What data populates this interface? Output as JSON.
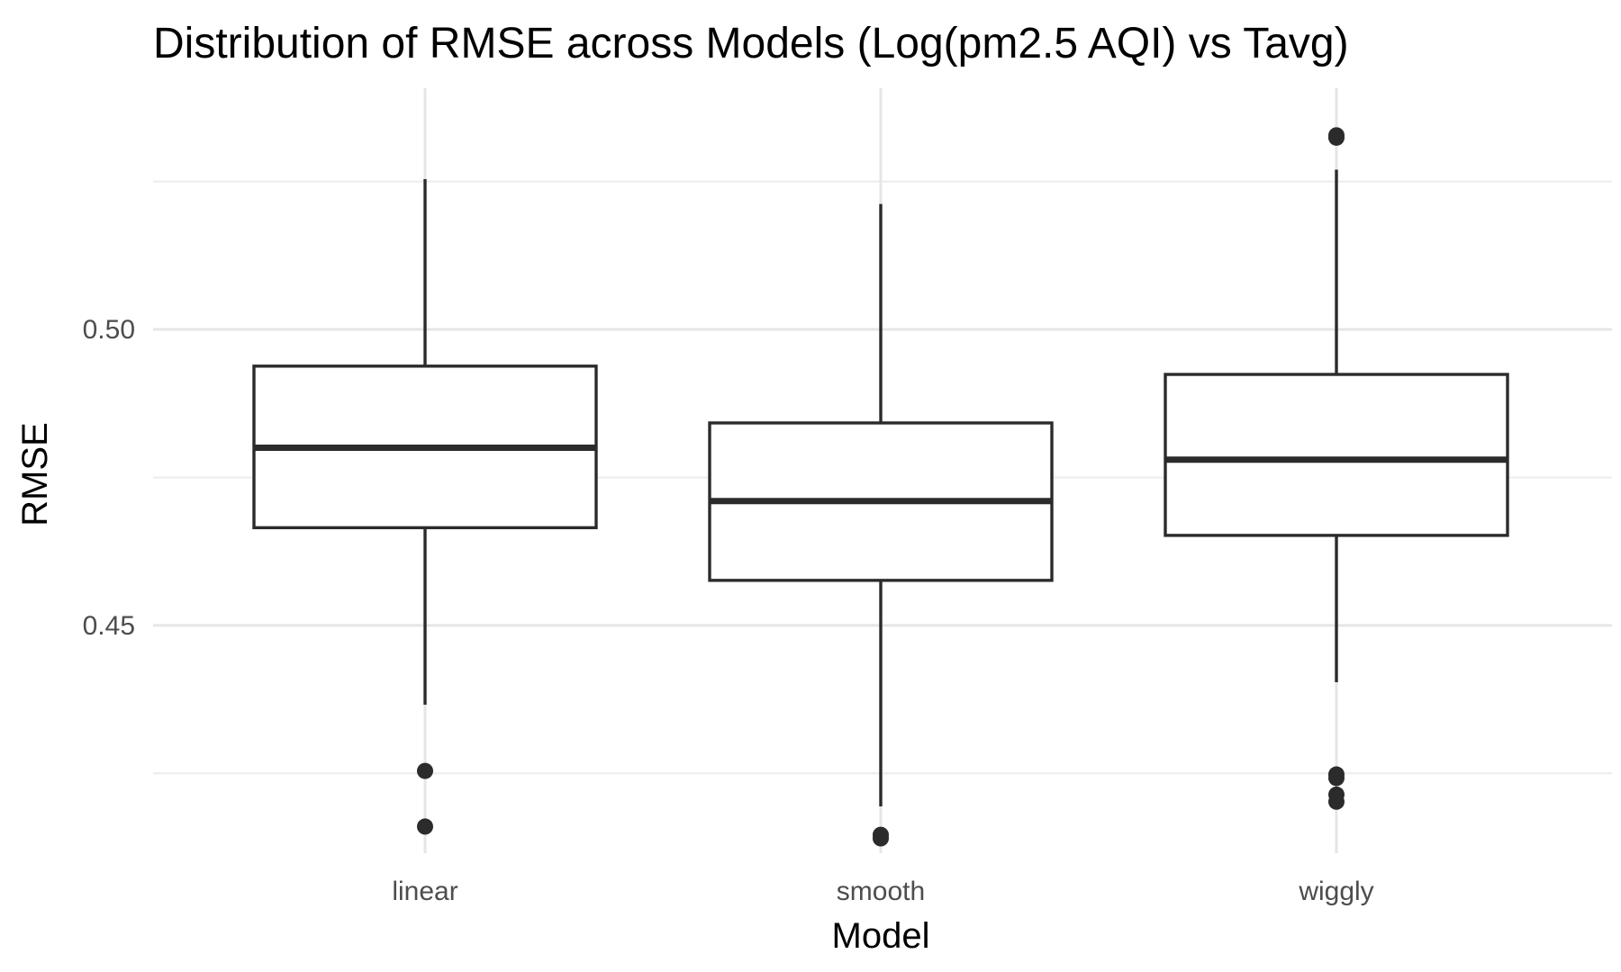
{
  "chart_data": {
    "type": "box",
    "title": "Distribution of RMSE across Models (Log(pm2.5 AQI) vs Tavg)",
    "xlabel": "Model",
    "ylabel": "RMSE",
    "categories": [
      "linear",
      "smooth",
      "wiggly"
    ],
    "y_ticks": [
      0.45,
      0.5
    ],
    "y_tick_labels": [
      "0.45",
      "0.50"
    ],
    "ylim": [
      0.4115,
      0.5435
    ],
    "grid": true,
    "legend": "none",
    "boxes": [
      {
        "category": "linear",
        "q1": 0.4665,
        "median": 0.48,
        "q3": 0.4938,
        "whisker_low": 0.4366,
        "whisker_high": 0.5254,
        "outliers": [
          0.4254,
          0.416
        ]
      },
      {
        "category": "smooth",
        "q1": 0.4576,
        "median": 0.471,
        "q3": 0.4842,
        "whisker_low": 0.4194,
        "whisker_high": 0.5212,
        "outliers": [
          0.4146,
          0.414
        ]
      },
      {
        "category": "wiggly",
        "q1": 0.4652,
        "median": 0.478,
        "q3": 0.4924,
        "whisker_low": 0.4404,
        "whisker_high": 0.527,
        "outliers": [
          0.5324,
          0.5328,
          0.4248,
          0.4242,
          0.4214,
          0.4202
        ]
      }
    ],
    "colors": {
      "line": "#2b2b2b",
      "box_fill": "#ffffff",
      "grid": "#e6e6e6"
    }
  }
}
